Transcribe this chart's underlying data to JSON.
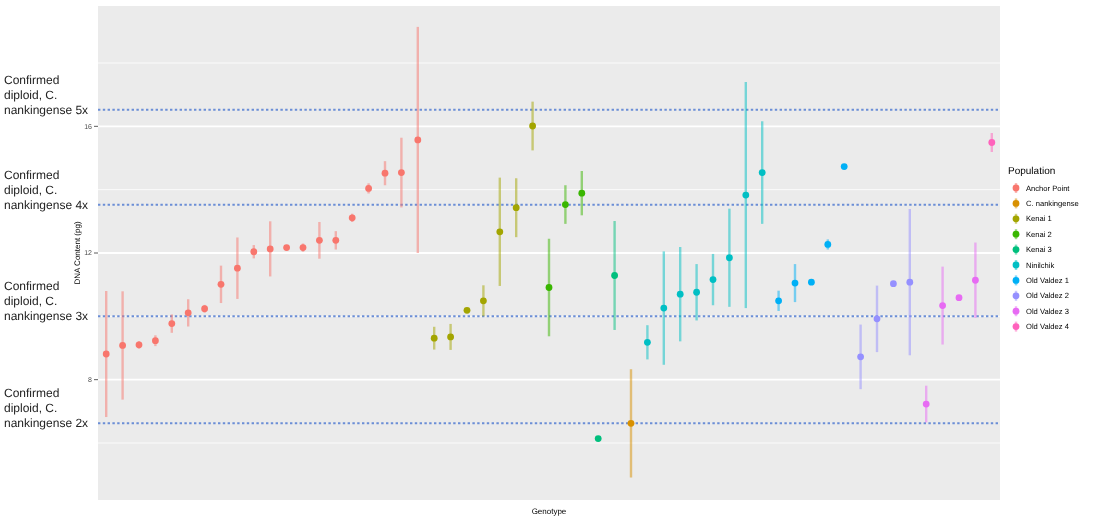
{
  "chart_data": {
    "type": "scatter",
    "xlabel": "Genotype",
    "ylabel": "DNA Content (pg)",
    "legend_title": "Population",
    "legend": "right",
    "grid": true,
    "marker": "circle",
    "tick_labels": "y",
    "ylim": [
      4.2,
      19.8
    ],
    "yticks": [
      8,
      12,
      16
    ],
    "categories": [
      null,
      null,
      null,
      null,
      null,
      null,
      null,
      null,
      null,
      null,
      null,
      null,
      null,
      null,
      null,
      null,
      null,
      null,
      null,
      null,
      null,
      null,
      null,
      null,
      null,
      null,
      null,
      null,
      null,
      null,
      null,
      null,
      null,
      null,
      null,
      null,
      null,
      null,
      null,
      null,
      null,
      null,
      null,
      null,
      null,
      null,
      null,
      null,
      null,
      null,
      null,
      null,
      null,
      null,
      null
    ],
    "ref_lines": [
      {
        "axis": "y",
        "value": 16.52,
        "label": "Confirmed diploid, C. nankingense 5x",
        "color": "#6b8ed6",
        "line_style": "dotted"
      },
      {
        "axis": "y",
        "value": 13.52,
        "label": "Confirmed diploid, C. nankingense 4x",
        "color": "#6b8ed6",
        "line_style": "dotted"
      },
      {
        "axis": "y",
        "value": 10.0,
        "label": "Confirmed diploid, C. nankingense 3x",
        "color": "#6b8ed6",
        "line_style": "dotted"
      },
      {
        "axis": "y",
        "value": 6.62,
        "label": "Confirmed diploid, C. nankingense 2x",
        "color": "#6b8ed6",
        "line_style": "dotted"
      }
    ],
    "series": [
      {
        "name": "Anchor Point",
        "color": "#f8766d",
        "values": [
          8.81,
          9.08,
          9.1,
          9.23,
          9.77,
          10.11,
          10.24,
          11.01,
          11.52,
          12.04,
          12.13,
          12.17,
          12.17,
          12.4,
          12.4,
          13.11,
          14.04,
          14.52,
          14.54,
          15.57,
          null,
          null,
          null,
          null,
          null,
          null,
          null,
          null,
          null,
          null,
          null,
          null,
          null,
          null,
          null,
          null,
          null,
          null,
          null,
          null,
          null,
          null,
          null,
          null,
          null,
          null,
          null,
          null,
          null,
          null,
          null,
          null,
          null,
          null,
          null
        ],
        "errors": [
          1.99,
          1.71,
          0.12,
          0.17,
          0.29,
          0.43,
          0.12,
          0.59,
          0.97,
          0.21,
          0.87,
          null,
          0.13,
          0.58,
          0.29,
          0.13,
          0.16,
          0.38,
          1.1,
          3.57,
          null,
          null,
          null,
          null,
          null,
          null,
          null,
          null,
          null,
          null,
          null,
          null,
          null,
          null,
          null,
          null,
          null,
          null,
          null,
          null,
          null,
          null,
          null,
          null,
          null,
          null,
          null,
          null,
          null,
          null,
          null,
          null,
          null,
          null,
          null
        ]
      },
      {
        "name": "C. nankingense",
        "color": "#d89000",
        "values": [
          null,
          null,
          null,
          null,
          null,
          null,
          null,
          null,
          null,
          null,
          null,
          null,
          null,
          null,
          null,
          null,
          null,
          null,
          null,
          null,
          null,
          null,
          null,
          null,
          null,
          null,
          null,
          null,
          null,
          null,
          null,
          null,
          6.62,
          null,
          null,
          null,
          null,
          null,
          null,
          null,
          null,
          null,
          null,
          null,
          null,
          null,
          null,
          null,
          null,
          null,
          null,
          null,
          null,
          null,
          null
        ],
        "errors": [
          null,
          null,
          null,
          null,
          null,
          null,
          null,
          null,
          null,
          null,
          null,
          null,
          null,
          null,
          null,
          null,
          null,
          null,
          null,
          null,
          null,
          null,
          null,
          null,
          null,
          null,
          null,
          null,
          null,
          null,
          null,
          null,
          1.71,
          null,
          null,
          null,
          null,
          null,
          null,
          null,
          null,
          null,
          null,
          null,
          null,
          null,
          null,
          null,
          null,
          null,
          null,
          null,
          null,
          null,
          null
        ]
      },
      {
        "name": "Kenai 1",
        "color": "#a3a500",
        "values": [
          null,
          null,
          null,
          null,
          null,
          null,
          null,
          null,
          null,
          null,
          null,
          null,
          null,
          null,
          null,
          null,
          null,
          null,
          null,
          null,
          9.31,
          9.35,
          10.19,
          10.49,
          12.67,
          13.43,
          16.01,
          null,
          null,
          null,
          null,
          null,
          null,
          null,
          null,
          null,
          null,
          null,
          null,
          null,
          null,
          null,
          null,
          null,
          null,
          null,
          null,
          null,
          null,
          null,
          null,
          null,
          null,
          null,
          null
        ],
        "errors": [
          null,
          null,
          null,
          null,
          null,
          null,
          null,
          null,
          null,
          null,
          null,
          null,
          null,
          null,
          null,
          null,
          null,
          null,
          null,
          null,
          0.36,
          0.41,
          null,
          0.49,
          1.71,
          0.93,
          0.77,
          null,
          null,
          null,
          null,
          null,
          null,
          null,
          null,
          null,
          null,
          null,
          null,
          null,
          null,
          null,
          null,
          null,
          null,
          null,
          null,
          null,
          null,
          null,
          null,
          null,
          null,
          null,
          null
        ]
      },
      {
        "name": "Kenai 2",
        "color": "#39b600",
        "values": [
          null,
          null,
          null,
          null,
          null,
          null,
          null,
          null,
          null,
          null,
          null,
          null,
          null,
          null,
          null,
          null,
          null,
          null,
          null,
          null,
          null,
          null,
          null,
          null,
          null,
          null,
          null,
          10.91,
          13.53,
          13.89,
          null,
          null,
          null,
          null,
          null,
          null,
          null,
          null,
          null,
          null,
          null,
          null,
          null,
          null,
          null,
          null,
          null,
          null,
          null,
          null,
          null,
          null,
          null,
          null,
          null
        ],
        "errors": [
          null,
          null,
          null,
          null,
          null,
          null,
          null,
          null,
          null,
          null,
          null,
          null,
          null,
          null,
          null,
          null,
          null,
          null,
          null,
          null,
          null,
          null,
          null,
          null,
          null,
          null,
          null,
          1.54,
          0.61,
          0.7,
          null,
          null,
          null,
          null,
          null,
          null,
          null,
          null,
          null,
          null,
          null,
          null,
          null,
          null,
          null,
          null,
          null,
          null,
          null,
          null,
          null,
          null,
          null,
          null,
          null
        ]
      },
      {
        "name": "Kenai 3",
        "color": "#00bf7d",
        "values": [
          null,
          null,
          null,
          null,
          null,
          null,
          null,
          null,
          null,
          null,
          null,
          null,
          null,
          null,
          null,
          null,
          null,
          null,
          null,
          null,
          null,
          null,
          null,
          null,
          null,
          null,
          null,
          null,
          null,
          null,
          6.14,
          11.29,
          null,
          null,
          null,
          null,
          null,
          null,
          null,
          null,
          null,
          null,
          null,
          null,
          null,
          null,
          null,
          null,
          null,
          null,
          null,
          null,
          null,
          null,
          null
        ],
        "errors": [
          null,
          null,
          null,
          null,
          null,
          null,
          null,
          null,
          null,
          null,
          null,
          null,
          null,
          null,
          null,
          null,
          null,
          null,
          null,
          null,
          null,
          null,
          null,
          null,
          null,
          null,
          null,
          null,
          null,
          null,
          null,
          1.72,
          null,
          null,
          null,
          null,
          null,
          null,
          null,
          null,
          null,
          null,
          null,
          null,
          null,
          null,
          null,
          null,
          null,
          null,
          null,
          null,
          null,
          null,
          null
        ]
      },
      {
        "name": "Ninilchik",
        "color": "#00bfc4",
        "values": [
          null,
          null,
          null,
          null,
          null,
          null,
          null,
          null,
          null,
          null,
          null,
          null,
          null,
          null,
          null,
          null,
          null,
          null,
          null,
          null,
          null,
          null,
          null,
          null,
          null,
          null,
          null,
          null,
          null,
          null,
          null,
          null,
          null,
          9.18,
          10.26,
          10.7,
          10.76,
          11.16,
          11.85,
          13.83,
          14.54,
          null,
          null,
          null,
          null,
          null,
          null,
          null,
          null,
          null,
          null,
          null,
          null,
          null,
          null
        ],
        "errors": [
          null,
          null,
          null,
          null,
          null,
          null,
          null,
          null,
          null,
          null,
          null,
          null,
          null,
          null,
          null,
          null,
          null,
          null,
          null,
          null,
          null,
          null,
          null,
          null,
          null,
          null,
          null,
          null,
          null,
          null,
          null,
          null,
          null,
          0.54,
          1.79,
          1.49,
          0.89,
          0.81,
          1.55,
          3.57,
          1.62,
          null,
          null,
          null,
          null,
          null,
          null,
          null,
          null,
          null,
          null,
          null,
          null,
          null,
          null
        ]
      },
      {
        "name": "Old Valdez 1",
        "color": "#00b0f6",
        "values": [
          null,
          null,
          null,
          null,
          null,
          null,
          null,
          null,
          null,
          null,
          null,
          null,
          null,
          null,
          null,
          null,
          null,
          null,
          null,
          null,
          null,
          null,
          null,
          null,
          null,
          null,
          null,
          null,
          null,
          null,
          null,
          null,
          null,
          null,
          null,
          null,
          null,
          null,
          null,
          null,
          null,
          10.49,
          11.05,
          11.08,
          12.27,
          14.73,
          null,
          null,
          null,
          null,
          null,
          null,
          null,
          null,
          null
        ],
        "errors": [
          null,
          null,
          null,
          null,
          null,
          null,
          null,
          null,
          null,
          null,
          null,
          null,
          null,
          null,
          null,
          null,
          null,
          null,
          null,
          null,
          null,
          null,
          null,
          null,
          null,
          null,
          null,
          null,
          null,
          null,
          null,
          null,
          null,
          null,
          null,
          null,
          null,
          null,
          null,
          null,
          null,
          0.32,
          0.6,
          null,
          0.16,
          null,
          null,
          null,
          null,
          null,
          null,
          null,
          null,
          null,
          null
        ]
      },
      {
        "name": "Old Valdez 2",
        "color": "#9590ff",
        "values": [
          null,
          null,
          null,
          null,
          null,
          null,
          null,
          null,
          null,
          null,
          null,
          null,
          null,
          null,
          null,
          null,
          null,
          null,
          null,
          null,
          null,
          null,
          null,
          null,
          null,
          null,
          null,
          null,
          null,
          null,
          null,
          null,
          null,
          null,
          null,
          null,
          null,
          null,
          null,
          null,
          null,
          null,
          null,
          null,
          null,
          null,
          8.72,
          9.92,
          11.03,
          11.08,
          null,
          null,
          null,
          null,
          null
        ],
        "errors": [
          null,
          null,
          null,
          null,
          null,
          null,
          null,
          null,
          null,
          null,
          null,
          null,
          null,
          null,
          null,
          null,
          null,
          null,
          null,
          null,
          null,
          null,
          null,
          null,
          null,
          null,
          null,
          null,
          null,
          null,
          null,
          null,
          null,
          null,
          null,
          null,
          null,
          null,
          null,
          null,
          null,
          null,
          null,
          null,
          null,
          null,
          1.02,
          1.05,
          null,
          2.31,
          null,
          null,
          null,
          null,
          null
        ]
      },
      {
        "name": "Old Valdez 3",
        "color": "#e76bf3",
        "values": [
          null,
          null,
          null,
          null,
          null,
          null,
          null,
          null,
          null,
          null,
          null,
          null,
          null,
          null,
          null,
          null,
          null,
          null,
          null,
          null,
          null,
          null,
          null,
          null,
          null,
          null,
          null,
          null,
          null,
          null,
          null,
          null,
          null,
          null,
          null,
          null,
          null,
          null,
          null,
          null,
          null,
          null,
          null,
          null,
          null,
          null,
          null,
          null,
          null,
          null,
          7.23,
          10.34,
          10.59,
          11.14,
          null
        ],
        "errors": [
          null,
          null,
          null,
          null,
          null,
          null,
          null,
          null,
          null,
          null,
          null,
          null,
          null,
          null,
          null,
          null,
          null,
          null,
          null,
          null,
          null,
          null,
          null,
          null,
          null,
          null,
          null,
          null,
          null,
          null,
          null,
          null,
          null,
          null,
          null,
          null,
          null,
          null,
          null,
          null,
          null,
          null,
          null,
          null,
          null,
          null,
          null,
          null,
          null,
          null,
          0.58,
          1.23,
          null,
          1.19,
          null
        ]
      },
      {
        "name": "Old Valdez 4",
        "color": "#ff62bc",
        "values": [
          null,
          null,
          null,
          null,
          null,
          null,
          null,
          null,
          null,
          null,
          null,
          null,
          null,
          null,
          null,
          null,
          null,
          null,
          null,
          null,
          null,
          null,
          null,
          null,
          null,
          null,
          null,
          null,
          null,
          null,
          null,
          null,
          null,
          null,
          null,
          null,
          null,
          null,
          null,
          null,
          null,
          null,
          null,
          null,
          null,
          null,
          null,
          null,
          null,
          null,
          null,
          null,
          null,
          null,
          15.49
        ],
        "errors": [
          null,
          null,
          null,
          null,
          null,
          null,
          null,
          null,
          null,
          null,
          null,
          null,
          null,
          null,
          null,
          null,
          null,
          null,
          null,
          null,
          null,
          null,
          null,
          null,
          null,
          null,
          null,
          null,
          null,
          null,
          null,
          null,
          null,
          null,
          null,
          null,
          null,
          null,
          null,
          null,
          null,
          null,
          null,
          null,
          null,
          null,
          null,
          null,
          null,
          null,
          null,
          null,
          null,
          null,
          0.3
        ]
      }
    ]
  }
}
